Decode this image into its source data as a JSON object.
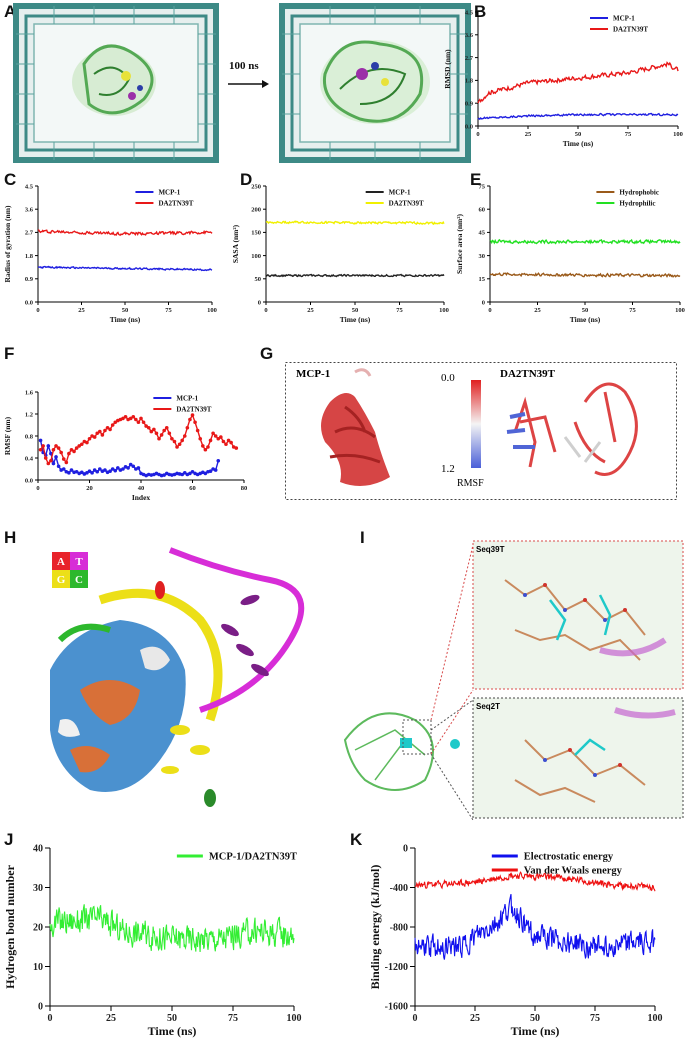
{
  "panels": {
    "A": {
      "label": "A",
      "arrow_text": "100 ns"
    },
    "B": {
      "label": "B"
    },
    "C": {
      "label": "C"
    },
    "D": {
      "label": "D"
    },
    "E": {
      "label": "E"
    },
    "F": {
      "label": "F"
    },
    "G": {
      "label": "G",
      "left_title": "MCP-1",
      "right_title": "DA2TN39T",
      "scale_top": "0.0",
      "scale_bottom": "1.2",
      "scale_name": "RMSF"
    },
    "H": {
      "label": "H",
      "base_letters": [
        "A",
        "T",
        "G",
        "C"
      ]
    },
    "I": {
      "label": "I",
      "box1_title": "Seq39T",
      "box2_title": "Seq2T"
    },
    "J": {
      "label": "J"
    },
    "K": {
      "label": "K"
    }
  },
  "chart_data": [
    {
      "id": "B",
      "type": "line",
      "xlabel": "Time (ns)",
      "ylabel": "RMSD (nm)",
      "xlim": [
        0,
        100
      ],
      "ylim": [
        0,
        4.5
      ],
      "xticks": [
        0,
        25,
        50,
        75,
        100
      ],
      "yticks": [
        0.0,
        0.9,
        1.8,
        2.7,
        3.6,
        4.5
      ],
      "legend": "top-right",
      "series": [
        {
          "name": "MCP-1",
          "color": "#1f1fe0",
          "base": [
            [
              0,
              0.3
            ],
            [
              25,
              0.4
            ],
            [
              50,
              0.45
            ],
            [
              75,
              0.45
            ],
            [
              100,
              0.45
            ]
          ],
          "noise": 0.05
        },
        {
          "name": "DA2TN39T",
          "color": "#e81818",
          "base": [
            [
              0,
              0.9
            ],
            [
              5,
              1.3
            ],
            [
              25,
              1.7
            ],
            [
              50,
              1.9
            ],
            [
              75,
              2.1
            ],
            [
              95,
              2.45
            ],
            [
              100,
              2.2
            ]
          ],
          "noise": 0.12
        }
      ]
    },
    {
      "id": "C",
      "type": "line",
      "xlabel": "Time (ns)",
      "ylabel": "Radius of gyration (nm)",
      "xlim": [
        0,
        100
      ],
      "ylim": [
        0,
        4.5
      ],
      "xticks": [
        0,
        25,
        50,
        75,
        100
      ],
      "yticks": [
        0.0,
        0.9,
        1.8,
        2.7,
        3.6,
        4.5
      ],
      "legend": "top-right",
      "series": [
        {
          "name": "MCP-1",
          "color": "#1f1fe0",
          "base": [
            [
              0,
              1.35
            ],
            [
              100,
              1.25
            ]
          ],
          "noise": 0.04
        },
        {
          "name": "DA2TN39T",
          "color": "#e81818",
          "base": [
            [
              0,
              2.75
            ],
            [
              50,
              2.65
            ],
            [
              100,
              2.7
            ]
          ],
          "noise": 0.07
        }
      ]
    },
    {
      "id": "D",
      "type": "line",
      "xlabel": "Time (ns)",
      "ylabel": "SASA (nm²)",
      "xlim": [
        0,
        100
      ],
      "ylim": [
        0,
        250
      ],
      "xticks": [
        0,
        25,
        50,
        75,
        100
      ],
      "yticks": [
        0,
        50,
        100,
        150,
        200,
        250
      ],
      "legend": "top-right",
      "series": [
        {
          "name": "MCP-1",
          "color": "#222222",
          "base": [
            [
              0,
              57
            ],
            [
              100,
              57
            ]
          ],
          "noise": 2.5
        },
        {
          "name": "DA2TN39T",
          "color": "#f0f000",
          "base": [
            [
              0,
              172
            ],
            [
              100,
              170
            ]
          ],
          "noise": 3
        }
      ]
    },
    {
      "id": "E",
      "type": "line",
      "xlabel": "Time (ns)",
      "ylabel": "Surface area (nm²)",
      "xlim": [
        0,
        100
      ],
      "ylim": [
        0,
        75
      ],
      "xticks": [
        0,
        25,
        50,
        75,
        100
      ],
      "yticks": [
        0,
        15,
        30,
        45,
        60,
        75
      ],
      "legend": "top-right",
      "series": [
        {
          "name": "Hydrophobic",
          "color": "#9a5a1a",
          "base": [
            [
              0,
              18
            ],
            [
              100,
              17
            ]
          ],
          "noise": 1.2
        },
        {
          "name": "Hydrophilic",
          "color": "#22e022",
          "base": [
            [
              0,
              39
            ],
            [
              100,
              39
            ]
          ],
          "noise": 1.3
        }
      ]
    },
    {
      "id": "F",
      "type": "line",
      "markers": true,
      "xlabel": "Index",
      "ylabel": "RMSF (nm)",
      "xlim": [
        0,
        80
      ],
      "ylim": [
        0,
        1.6
      ],
      "xticks": [
        0,
        20,
        40,
        60,
        80
      ],
      "yticks": [
        0.0,
        0.4,
        0.8,
        1.2,
        1.6
      ],
      "legend": "top-right",
      "series": [
        {
          "name": "MCP-1",
          "color": "#1f1fe0",
          "points": [
            [
              1,
              0.72
            ],
            [
              2,
              0.5
            ],
            [
              3,
              0.45
            ],
            [
              4,
              0.62
            ],
            [
              5,
              0.48
            ],
            [
              6,
              0.3
            ],
            [
              7,
              0.42
            ],
            [
              8,
              0.25
            ],
            [
              9,
              0.18
            ],
            [
              10,
              0.2
            ],
            [
              11,
              0.15
            ],
            [
              12,
              0.13
            ],
            [
              13,
              0.18
            ],
            [
              14,
              0.14
            ],
            [
              15,
              0.15
            ],
            [
              16,
              0.12
            ],
            [
              17,
              0.14
            ],
            [
              18,
              0.11
            ],
            [
              19,
              0.13
            ],
            [
              20,
              0.16
            ],
            [
              21,
              0.13
            ],
            [
              22,
              0.18
            ],
            [
              23,
              0.15
            ],
            [
              24,
              0.2
            ],
            [
              25,
              0.16
            ],
            [
              26,
              0.18
            ],
            [
              27,
              0.14
            ],
            [
              28,
              0.16
            ],
            [
              29,
              0.2
            ],
            [
              30,
              0.17
            ],
            [
              31,
              0.22
            ],
            [
              32,
              0.18
            ],
            [
              33,
              0.2
            ],
            [
              34,
              0.24
            ],
            [
              35,
              0.22
            ],
            [
              36,
              0.28
            ],
            [
              37,
              0.25
            ],
            [
              38,
              0.2
            ],
            [
              39,
              0.22
            ],
            [
              40,
              0.12
            ],
            [
              41,
              0.1
            ],
            [
              42,
              0.08
            ],
            [
              43,
              0.1
            ],
            [
              44,
              0.09
            ],
            [
              45,
              0.1
            ],
            [
              46,
              0.12
            ],
            [
              47,
              0.1
            ],
            [
              48,
              0.08
            ],
            [
              49,
              0.09
            ],
            [
              50,
              0.12
            ],
            [
              51,
              0.1
            ],
            [
              52,
              0.09
            ],
            [
              53,
              0.1
            ],
            [
              54,
              0.12
            ],
            [
              55,
              0.11
            ],
            [
              56,
              0.1
            ],
            [
              57,
              0.13
            ],
            [
              58,
              0.1
            ],
            [
              59,
              0.12
            ],
            [
              60,
              0.15
            ],
            [
              61,
              0.12
            ],
            [
              62,
              0.1
            ],
            [
              63,
              0.12
            ],
            [
              64,
              0.14
            ],
            [
              65,
              0.12
            ],
            [
              66,
              0.15
            ],
            [
              67,
              0.16
            ],
            [
              68,
              0.2
            ],
            [
              69,
              0.18
            ],
            [
              70,
              0.35
            ]
          ]
        },
        {
          "name": "DA2TN39T",
          "color": "#e81818",
          "points": [
            [
              1,
              0.55
            ],
            [
              2,
              0.62
            ],
            [
              3,
              0.4
            ],
            [
              4,
              0.3
            ],
            [
              5,
              0.35
            ],
            [
              6,
              0.55
            ],
            [
              7,
              0.62
            ],
            [
              8,
              0.58
            ],
            [
              9,
              0.5
            ],
            [
              10,
              0.38
            ],
            [
              11,
              0.32
            ],
            [
              12,
              0.48
            ],
            [
              13,
              0.55
            ],
            [
              14,
              0.52
            ],
            [
              15,
              0.58
            ],
            [
              16,
              0.62
            ],
            [
              17,
              0.65
            ],
            [
              18,
              0.7
            ],
            [
              19,
              0.68
            ],
            [
              20,
              0.75
            ],
            [
              21,
              0.8
            ],
            [
              22,
              0.78
            ],
            [
              23,
              0.85
            ],
            [
              24,
              0.88
            ],
            [
              25,
              0.82
            ],
            [
              26,
              0.9
            ],
            [
              27,
              0.95
            ],
            [
              28,
              0.92
            ],
            [
              29,
              1.0
            ],
            [
              30,
              1.05
            ],
            [
              31,
              1.08
            ],
            [
              32,
              1.1
            ],
            [
              33,
              1.12
            ],
            [
              34,
              1.15
            ],
            [
              35,
              1.1
            ],
            [
              36,
              1.12
            ],
            [
              37,
              1.15
            ],
            [
              38,
              1.1
            ],
            [
              39,
              1.05
            ],
            [
              40,
              1.12
            ],
            [
              41,
              1.05
            ],
            [
              42,
              0.98
            ],
            [
              43,
              0.95
            ],
            [
              44,
              0.88
            ],
            [
              45,
              0.92
            ],
            [
              46,
              0.85
            ],
            [
              47,
              0.75
            ],
            [
              48,
              0.82
            ],
            [
              49,
              0.9
            ],
            [
              50,
              0.95
            ],
            [
              51,
              0.85
            ],
            [
              52,
              0.75
            ],
            [
              53,
              0.7
            ],
            [
              54,
              0.6
            ],
            [
              55,
              0.65
            ],
            [
              56,
              0.72
            ],
            [
              57,
              0.8
            ],
            [
              58,
              0.95
            ],
            [
              59,
              1.1
            ],
            [
              60,
              1.18
            ],
            [
              61,
              1.05
            ],
            [
              62,
              0.9
            ],
            [
              63,
              0.75
            ],
            [
              64,
              0.62
            ],
            [
              65,
              0.55
            ],
            [
              66,
              0.6
            ],
            [
              67,
              0.72
            ],
            [
              68,
              0.85
            ],
            [
              69,
              0.8
            ],
            [
              70,
              0.75
            ],
            [
              71,
              0.78
            ],
            [
              72,
              0.7
            ],
            [
              73,
              0.65
            ],
            [
              74,
              0.72
            ],
            [
              75,
              0.68
            ],
            [
              76,
              0.6
            ],
            [
              77,
              0.58
            ]
          ]
        }
      ]
    },
    {
      "id": "J",
      "type": "line",
      "xlabel": "Time (ns)",
      "ylabel": "Hydrogen bond number",
      "xlim": [
        0,
        100
      ],
      "ylim": [
        0,
        40
      ],
      "xticks": [
        0,
        25,
        50,
        75,
        100
      ],
      "yticks": [
        0,
        10,
        20,
        30,
        40
      ],
      "legend": "top-right",
      "series": [
        {
          "name": "MCP-1/DA2TN39T",
          "color": "#33ee33",
          "base": [
            [
              0,
              21
            ],
            [
              20,
              22
            ],
            [
              30,
              19
            ],
            [
              50,
              17
            ],
            [
              70,
              17
            ],
            [
              85,
              19
            ],
            [
              100,
              18
            ]
          ],
          "noise": 4.5
        }
      ]
    },
    {
      "id": "K",
      "type": "line",
      "xlabel": "Time (ns)",
      "ylabel": "Binding energy (kJ/mol)",
      "xlim": [
        0,
        100
      ],
      "ylim": [
        -1600,
        0
      ],
      "xticks": [
        0,
        25,
        50,
        75,
        100
      ],
      "yticks": [
        -1600,
        -1200,
        -800,
        -400,
        0
      ],
      "legend": "top-right",
      "series": [
        {
          "name": "Electrostatic energy",
          "color": "#1010ee",
          "base": [
            [
              0,
              -1000
            ],
            [
              20,
              -1000
            ],
            [
              35,
              -750
            ],
            [
              40,
              -600
            ],
            [
              50,
              -900
            ],
            [
              75,
              -1000
            ],
            [
              100,
              -950
            ]
          ],
          "noise": 150
        },
        {
          "name": "Van der Waals energy",
          "color": "#ee1010",
          "base": [
            [
              0,
              -380
            ],
            [
              25,
              -350
            ],
            [
              40,
              -280
            ],
            [
              60,
              -300
            ],
            [
              80,
              -370
            ],
            [
              100,
              -400
            ]
          ],
          "noise": 45
        }
      ]
    }
  ],
  "colors": {
    "membrane": "#3d8a86",
    "protein": "#76c776",
    "rmsf_high": "#dc3030",
    "rmsf_low": "#5b6bd8",
    "dna_pink": "#d72dd7",
    "dna_yellow": "#ecdf18",
    "surf_blue": "#3a86c7",
    "surf_orange": "#d86b30"
  }
}
